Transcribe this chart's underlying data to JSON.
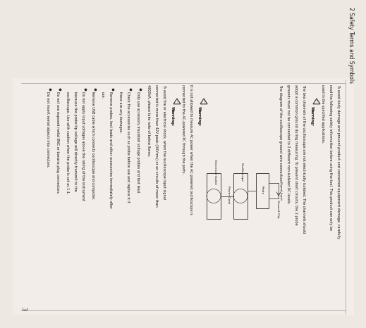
{
  "title": "2 Safety Terms and Symbols",
  "page_number": "3",
  "bg_color": "#ede8e2",
  "content_bg": "#f2ede8",
  "text_color": "#111111",
  "line_color": "#999999",
  "para0_lines": [
    "To avoid body damage and prevent product and connected equipment damage, carefully",
    "read the following safety information before using the tool. This product can only be",
    "used in the specified applications."
  ],
  "w1_label": "Warning:",
  "w1_lines": [
    "The two channels of the oscilloscope are not electrically isolated. The channels should",
    "adopt a common ground during measuring. To prevent short circuits, the 2 probe",
    "grounds must not be connected to 2 different non-isolated DC levels.",
    "The diagram of the oscilloscope ground wire connection:"
  ],
  "diag_labels": {
    "signal_input": "Signal Input",
    "ground_clip": "Ground Clip",
    "probe": "Probe",
    "oscilloscope": "Oscilloscope",
    "power_cord": "Power Cord",
    "electrical_outlet": "Electrical Outlet"
  },
  "w2_label": "Warning:",
  "w2_lines": [
    "It is not allowed to measure AC power when the AC powered oscilloscope is",
    "connected to the AC-powered PC through the ports."
  ],
  "w3_label": "Warning:",
  "w3_lines": [
    "To avoid fire or electrical shock, when the oscilloscope input signal",
    "connected is more than 42V peak (30Vrms) or an circuits of more than",
    "4800VA, please take note of below items:"
  ],
  "bullets": [
    [
      "Only use accessory insulated voltage probes and test lead."
    ],
    [
      "Check the accessories such as probe before use and replace it if",
      "there are any damages."
    ],
    [
      "Remove probes, test leads and other accessories immediately after",
      "use."
    ],
    [
      "Remove USB cable which connects oscilloscope and computer."
    ],
    [
      "Do not apply input voltages above the rating of the instrument",
      "because the probe tip voltage will directly transmit to the",
      "oscilloscope. Use with caution when the probe is set as 1:1."
    ],
    [
      "Do not use exposed metal BNC or banana plug connectors."
    ],
    [
      "Do not insert metal objects into connectors."
    ]
  ]
}
